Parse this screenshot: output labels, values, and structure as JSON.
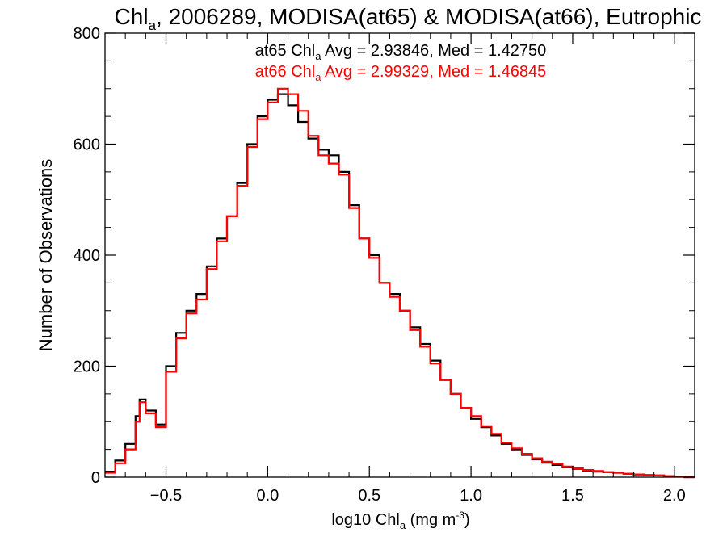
{
  "chart_data": {
    "type": "line",
    "title": {
      "prefix": "Chl",
      "sub": "a",
      "rest": ", 2006289, MODISA(at65) & MODISA(at66), Eutrophic"
    },
    "xlabel": {
      "prefix": "log10 Chl",
      "sub": "a",
      "unit_open": " (mg m",
      "unit_sup": "-3",
      "unit_close": ")"
    },
    "ylabel": "Number of Observations",
    "xlim": [
      -0.8,
      2.1
    ],
    "ylim": [
      0,
      800
    ],
    "xticks": [
      -0.5,
      0.0,
      0.5,
      1.0,
      1.5,
      2.0
    ],
    "xtick_labels": [
      "−0.5",
      "0.0",
      "0.5",
      "1.0",
      "1.5",
      "2.0"
    ],
    "yticks": [
      0,
      200,
      400,
      600,
      800
    ],
    "ytick_labels": [
      "0",
      "200",
      "400",
      "600",
      "800"
    ],
    "grid": false,
    "legend_position": "top-center",
    "series": [
      {
        "name": "at65",
        "color": "#000000",
        "annotation": {
          "label_prefix": "at65 Chl",
          "label_sub": "a",
          "stats": " Avg = 2.93846, Med = 1.42750"
        },
        "x": [
          -0.8,
          -0.75,
          -0.7,
          -0.65,
          -0.63,
          -0.6,
          -0.55,
          -0.5,
          -0.45,
          -0.4,
          -0.35,
          -0.3,
          -0.25,
          -0.2,
          -0.15,
          -0.1,
          -0.05,
          0.0,
          0.05,
          0.1,
          0.15,
          0.2,
          0.25,
          0.3,
          0.35,
          0.4,
          0.45,
          0.5,
          0.55,
          0.6,
          0.65,
          0.7,
          0.75,
          0.8,
          0.85,
          0.9,
          0.95,
          1.0,
          1.05,
          1.1,
          1.15,
          1.2,
          1.25,
          1.3,
          1.35,
          1.4,
          1.45,
          1.5,
          1.55,
          1.6,
          1.65,
          1.7,
          1.75,
          1.8,
          1.85,
          1.9,
          1.95,
          2.0,
          2.05,
          2.1
        ],
        "y": [
          10,
          30,
          60,
          110,
          140,
          120,
          95,
          200,
          260,
          300,
          330,
          380,
          430,
          470,
          530,
          600,
          650,
          680,
          690,
          670,
          640,
          610,
          590,
          580,
          550,
          490,
          430,
          400,
          350,
          330,
          300,
          270,
          240,
          210,
          175,
          150,
          125,
          105,
          90,
          75,
          60,
          50,
          40,
          32,
          26,
          22,
          18,
          15,
          12,
          10,
          9,
          8,
          6,
          5,
          4,
          3,
          2,
          1,
          0,
          0
        ]
      },
      {
        "name": "at66",
        "color": "#ff0000",
        "annotation": {
          "label_prefix": "at66 Chl",
          "label_sub": "a",
          "stats": " Avg = 2.99329, Med = 1.46845"
        },
        "x": [
          -0.8,
          -0.75,
          -0.7,
          -0.65,
          -0.63,
          -0.6,
          -0.55,
          -0.5,
          -0.45,
          -0.4,
          -0.35,
          -0.3,
          -0.25,
          -0.2,
          -0.15,
          -0.1,
          -0.05,
          0.0,
          0.05,
          0.1,
          0.15,
          0.2,
          0.25,
          0.3,
          0.35,
          0.4,
          0.45,
          0.5,
          0.55,
          0.6,
          0.65,
          0.7,
          0.75,
          0.8,
          0.85,
          0.9,
          0.95,
          1.0,
          1.05,
          1.1,
          1.15,
          1.2,
          1.25,
          1.3,
          1.35,
          1.4,
          1.45,
          1.5,
          1.55,
          1.6,
          1.65,
          1.7,
          1.75,
          1.8,
          1.85,
          1.9,
          1.95,
          2.0,
          2.05,
          2.1
        ],
        "y": [
          8,
          25,
          50,
          100,
          135,
          115,
          90,
          190,
          250,
          295,
          320,
          375,
          425,
          470,
          525,
          595,
          645,
          675,
          700,
          690,
          660,
          615,
          580,
          565,
          545,
          485,
          430,
          395,
          350,
          325,
          300,
          265,
          235,
          205,
          175,
          150,
          125,
          110,
          92,
          78,
          62,
          52,
          42,
          34,
          28,
          24,
          19,
          16,
          13,
          11,
          9,
          8,
          6,
          5,
          4,
          3,
          2,
          1,
          0,
          0
        ]
      }
    ]
  }
}
